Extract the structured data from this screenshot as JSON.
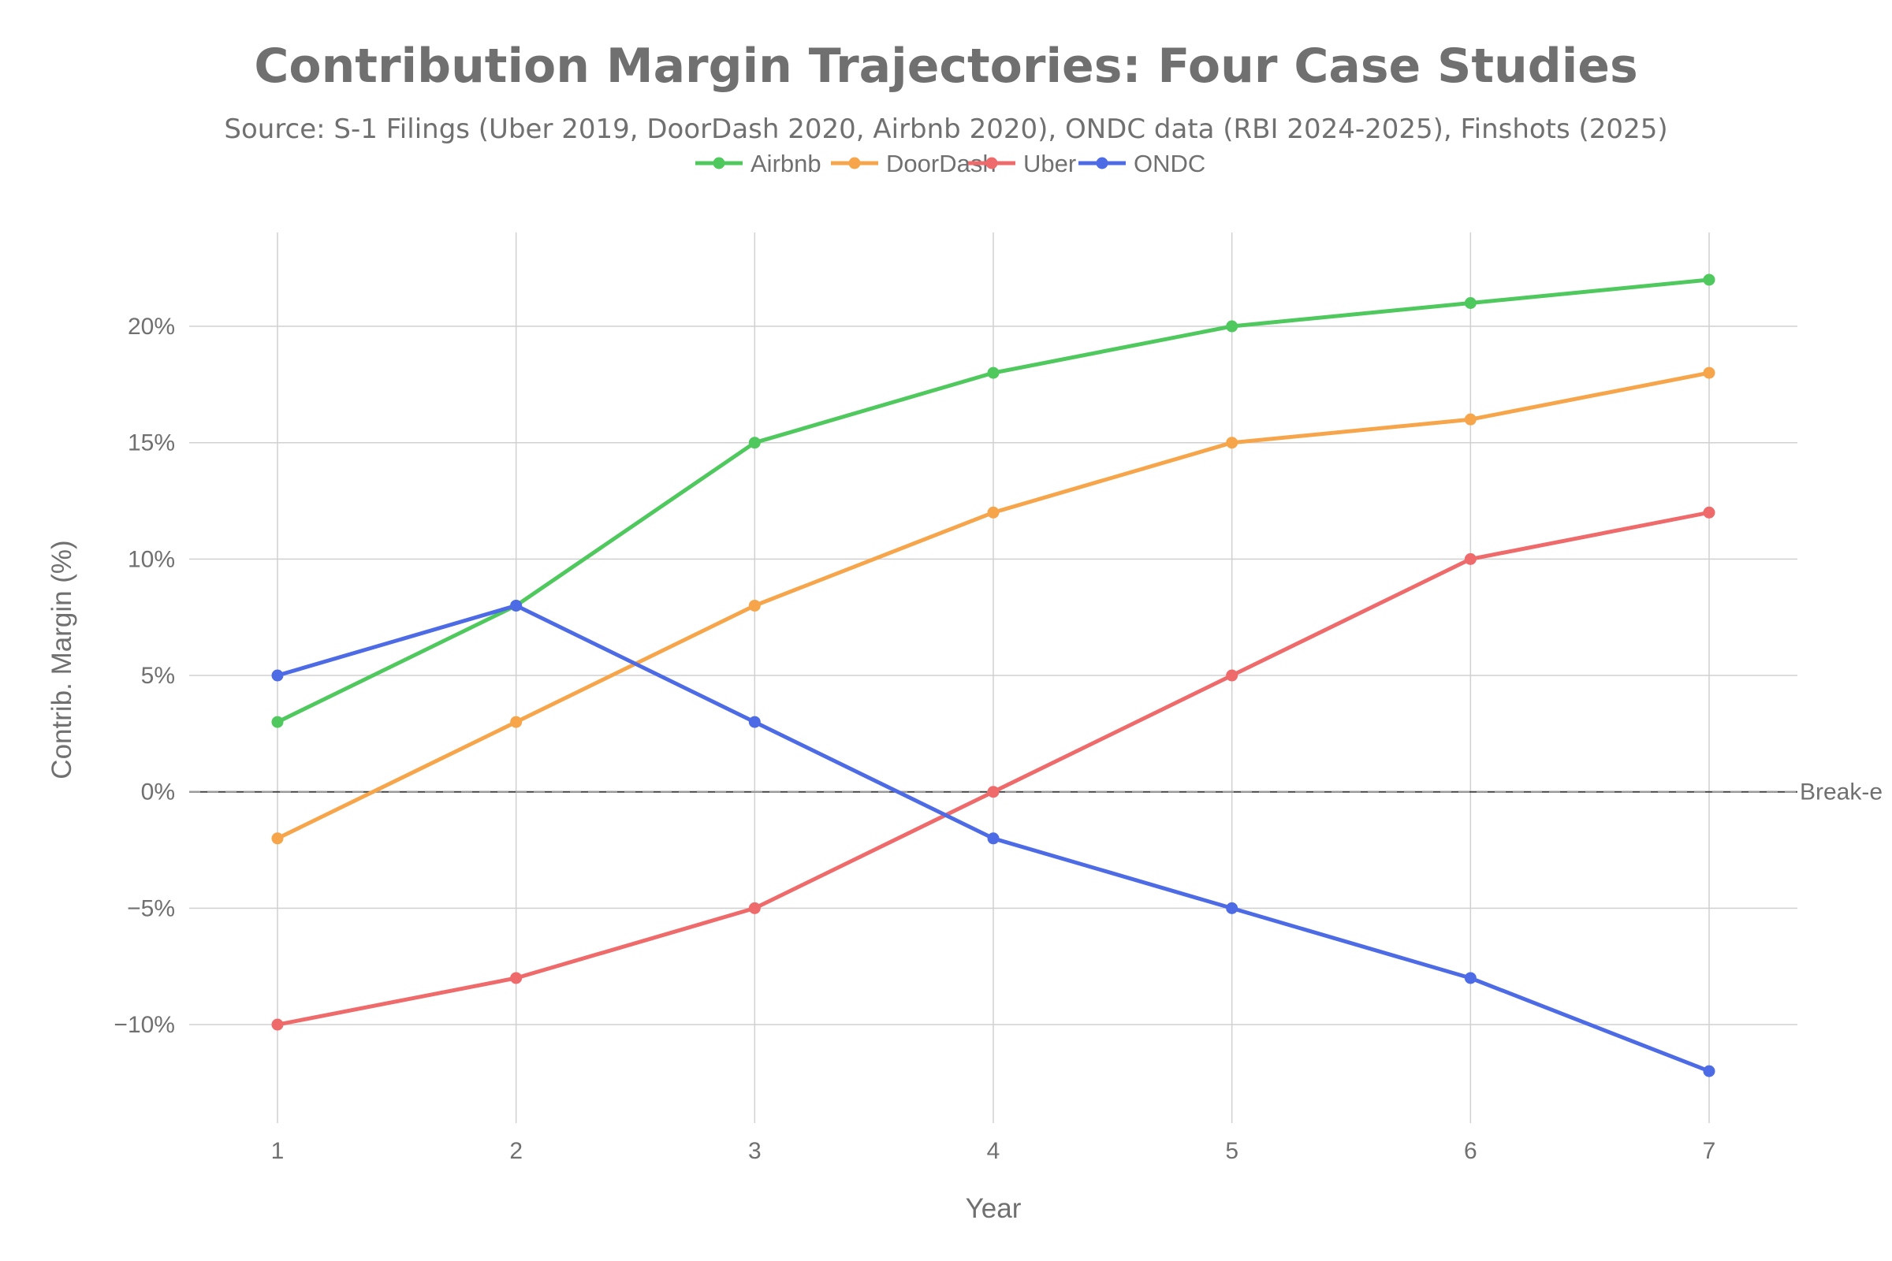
{
  "chart_data": {
    "type": "line",
    "title": "Contribution Margin Trajectories: Four Case Studies",
    "subtitle": "Source: S-1 Filings (Uber 2019, DoorDash 2020, Airbnb 2020), ONDC data (RBI 2024-2025), Finshots (2025)",
    "xlabel": "Year",
    "ylabel": "Contrib. Margin (%)",
    "x": [
      1,
      2,
      3,
      4,
      5,
      6,
      7
    ],
    "x_tick_labels": [
      "1",
      "2",
      "3",
      "4",
      "5",
      "6",
      "7"
    ],
    "y_ticks": [
      -10,
      -5,
      0,
      5,
      10,
      15,
      20
    ],
    "y_tick_labels": [
      "−10%",
      "−5%",
      "0%",
      "5%",
      "10%",
      "15%",
      "20%"
    ],
    "xlim": [
      0.63,
      7.37
    ],
    "ylim": [
      -14.4,
      24.2
    ],
    "grid": true,
    "legend_position": "top-center",
    "series": [
      {
        "name": "Airbnb",
        "color": "#4fc95e",
        "values": [
          3,
          8,
          15,
          18,
          20,
          21,
          22
        ]
      },
      {
        "name": "DoorDash",
        "color": "#f7a54a",
        "values": [
          -2,
          3,
          8,
          12,
          15,
          16,
          18
        ]
      },
      {
        "name": "Uber",
        "color": "#ef6a6a",
        "values": [
          -10,
          -8,
          -5,
          0,
          5,
          10,
          12
        ]
      },
      {
        "name": "ONDC",
        "color": "#4e6be6",
        "values": [
          5,
          8,
          3,
          -2,
          -5,
          -8,
          -12
        ]
      }
    ],
    "annotations": [
      {
        "type": "hline",
        "y": 0,
        "style": "dashed",
        "color": "#707070",
        "label": "Break-e"
      }
    ]
  }
}
